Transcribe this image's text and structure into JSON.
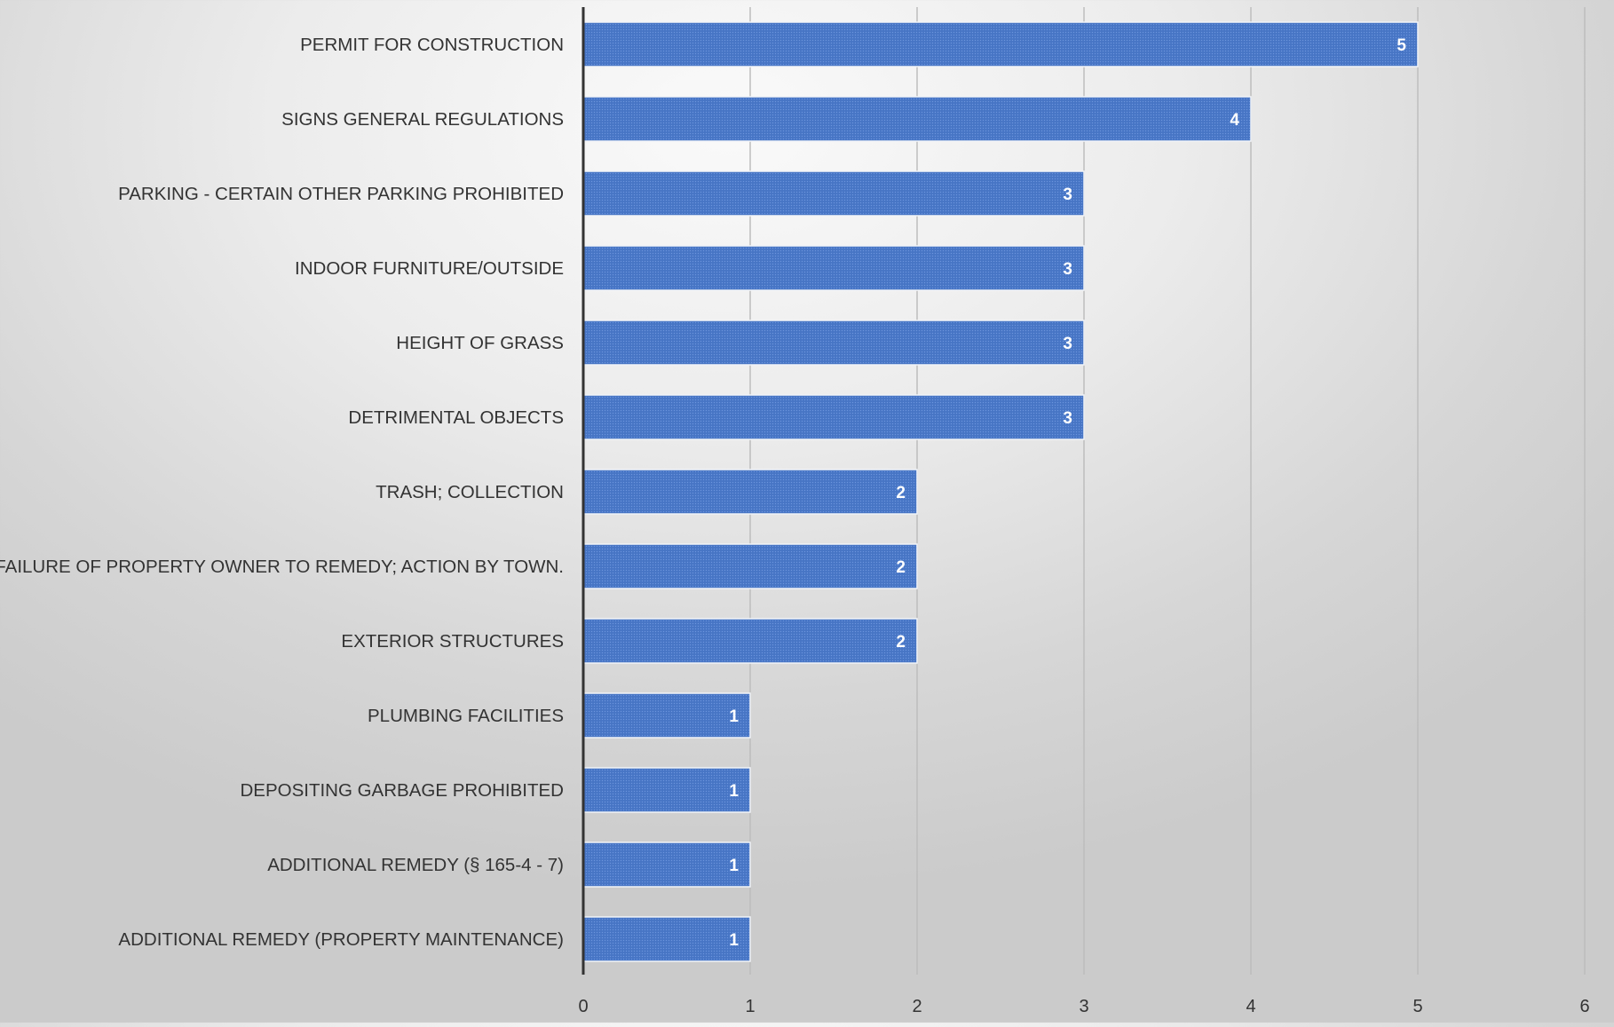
{
  "chart_data": {
    "type": "bar",
    "orientation": "horizontal",
    "title": "",
    "xlabel": "",
    "ylabel": "",
    "categories": [
      "PERMIT FOR CONSTRUCTION",
      "SIGNS GENERAL REGULATIONS",
      "PARKING - CERTAIN OTHER PARKING PROHIBITED",
      "INDOOR FURNITURE/OUTSIDE",
      "HEIGHT OF GRASS",
      "DETRIMENTAL OBJECTS",
      "TRASH; COLLECTION",
      "FAILURE OF PROPERTY OWNER TO REMEDY; ACTION BY TOWN.",
      "EXTERIOR STRUCTURES",
      "PLUMBING FACILITIES",
      "DEPOSITING GARBAGE PROHIBITED",
      "ADDITIONAL REMEDY (§ 165-4 - 7)",
      "ADDITIONAL REMEDY (PROPERTY MAINTENANCE)"
    ],
    "values": [
      5,
      4,
      3,
      3,
      3,
      3,
      2,
      2,
      2,
      1,
      1,
      1,
      1
    ],
    "xlim": [
      0,
      6
    ],
    "xticks": [
      0,
      1,
      2,
      3,
      4,
      5,
      6
    ],
    "grid": true,
    "legend": "none",
    "data_labels": true,
    "colors": {
      "bar": "#4a78c8",
      "bar_dots": "#6d95db",
      "bar_edge": "#f2f4f8",
      "gridline": "#bdbdbd",
      "axis": "#333333",
      "label_text": "#333333",
      "value_text": "#ffffff"
    }
  }
}
